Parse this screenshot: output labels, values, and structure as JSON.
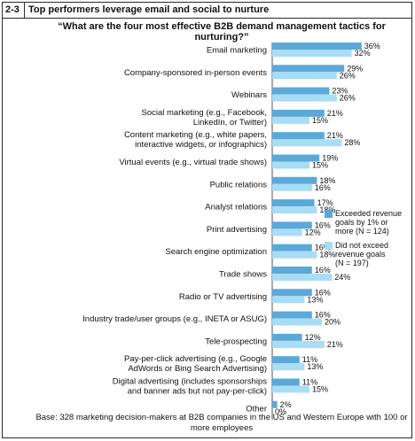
{
  "figure": {
    "number": "2-3",
    "title": "Top performers leverage email and social to nurture",
    "question": "“What are the four most effective B2B demand management tactics for nurturing?”",
    "base_note": "Base: 328 marketing decision-makers at B2B companies in the US and Western Europe with 100 or more employees"
  },
  "colors": {
    "exceeded": "#5aa9d9",
    "not_exceeded": "#a9dcf5"
  },
  "chart_data": {
    "type": "bar",
    "orientation": "horizontal",
    "value_suffix": "%",
    "xlim": [
      0,
      40
    ],
    "grid": false,
    "legend_position": "right",
    "categories": [
      [
        "Email marketing"
      ],
      [
        "Company-sponsored in-person events"
      ],
      [
        "Webinars"
      ],
      [
        "Social marketing (e.g., Facebook,",
        "LinkedIn, or Twitter)"
      ],
      [
        "Content marketing (e.g., white papers,",
        "interactive widgets, or infographics)"
      ],
      [
        "Virtual events (e.g., virtual trade shows)"
      ],
      [
        "Public relations"
      ],
      [
        "Analyst relations"
      ],
      [
        "Print advertising"
      ],
      [
        "Search engine optimization"
      ],
      [
        "Trade shows"
      ],
      [
        "Radio or TV advertising"
      ],
      [
        "Industry trade/user groups (e.g., INETA or ASUG)"
      ],
      [
        "Tele-prospecting"
      ],
      [
        "Pay-per-click advertising (e.g., Google",
        "AdWords or Bing Search Advertising)"
      ],
      [
        "Digital advertising (includes sponsorships",
        "and banner ads but not pay-per-click)"
      ],
      [
        "Other"
      ]
    ],
    "series": [
      {
        "name": "Exceeded revenue goals by 1% or more (N = 124)",
        "legend_lines": [
          "Exceeded revenue",
          "goals by 1% or",
          "more (N = 124)"
        ],
        "values": [
          36,
          29,
          23,
          21,
          21,
          19,
          18,
          17,
          16,
          16,
          16,
          16,
          16,
          12,
          11,
          11,
          2
        ]
      },
      {
        "name": "Did not exceed revenue goals (N = 197)",
        "legend_lines": [
          "Did not exceed",
          "revenue goals",
          "(N = 197)"
        ],
        "values": [
          32,
          26,
          26,
          15,
          28,
          15,
          16,
          18,
          12,
          18,
          24,
          13,
          20,
          21,
          13,
          15,
          0
        ]
      }
    ]
  }
}
